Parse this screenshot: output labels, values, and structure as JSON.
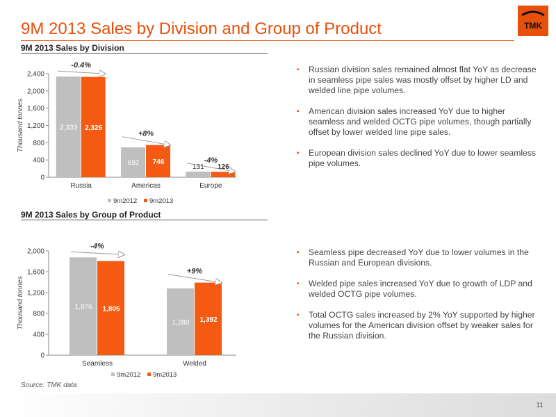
{
  "header": {
    "title": "9M 2013 Sales by Division and Group of Product"
  },
  "logo": {
    "text": "TMK",
    "color": "#e8500a"
  },
  "colors": {
    "accent": "#e8500a",
    "series_2012": "#bfbfbf",
    "series_2013": "#f55a12"
  },
  "sections": {
    "division_title": "9M 2013 Sales by Division",
    "product_title": "9M 2013 Sales by Group of Product"
  },
  "chart_data": [
    {
      "type": "bar",
      "title": "9M 2013 Sales by Division",
      "ylabel": "Thousand tonnes",
      "xlabel": "",
      "categories": [
        "Russia",
        "Americas",
        "Europe"
      ],
      "series": [
        {
          "name": "9m2012",
          "values": [
            2333,
            692,
            131
          ],
          "labels": [
            "2,333",
            "692",
            "131"
          ]
        },
        {
          "name": "9m2013",
          "values": [
            2325,
            746,
            126
          ],
          "labels": [
            "2,325",
            "746",
            "126"
          ]
        }
      ],
      "ylim": [
        0,
        2400
      ],
      "yticks": [
        0,
        400,
        800,
        1200,
        1600,
        2000,
        2400
      ],
      "ytick_labels": [
        "0",
        "400",
        "800",
        "1,200",
        "1,600",
        "2,000",
        "2,400"
      ],
      "annotations": [
        "-0.4%",
        "+8%",
        "-4%"
      ],
      "legend": "bottom",
      "grid": false
    },
    {
      "type": "bar",
      "title": "9M 2013 Sales by Group of Product",
      "ylabel": "Thousand tonnes",
      "xlabel": "",
      "categories": [
        "Seamless",
        "Welded"
      ],
      "series": [
        {
          "name": "9m2012",
          "values": [
            1876,
            1280
          ],
          "labels": [
            "1,876",
            "1,280"
          ]
        },
        {
          "name": "9m2013",
          "values": [
            1805,
            1392
          ],
          "labels": [
            "1,805",
            "1,392"
          ]
        }
      ],
      "ylim": [
        0,
        2000
      ],
      "yticks": [
        0,
        400,
        800,
        1200,
        1600,
        2000
      ],
      "ytick_labels": [
        "0",
        "400",
        "800",
        "1,200",
        "1,600",
        "2,000"
      ],
      "annotations": [
        "-4%",
        "+9%"
      ],
      "legend": "bottom",
      "grid": false
    }
  ],
  "bullets_division": [
    "Russian division sales remained almost flat YoY as decrease in seamless pipe sales was mostly offset by higher LD and welded line pipe volumes.",
    "American division sales increased YoY due to higher seamless and welded OCTG pipe volumes, though partially offset by lower welded line pipe sales.",
    "European division sales declined YoY due to lower seamless pipe volumes."
  ],
  "bullets_product": [
    "Seamless pipe decreased YoY due to lower volumes in the Russian and European divisions.",
    "Welded pipe sales increased YoY due to growth of  LDP and welded OCTG pipe volumes.",
    "Total OCTG sales increased by 2% YoY supported by higher volumes for the American division offset by weaker sales for the Russian division."
  ],
  "footer": {
    "source": "Source: TMK data",
    "page": "11"
  }
}
